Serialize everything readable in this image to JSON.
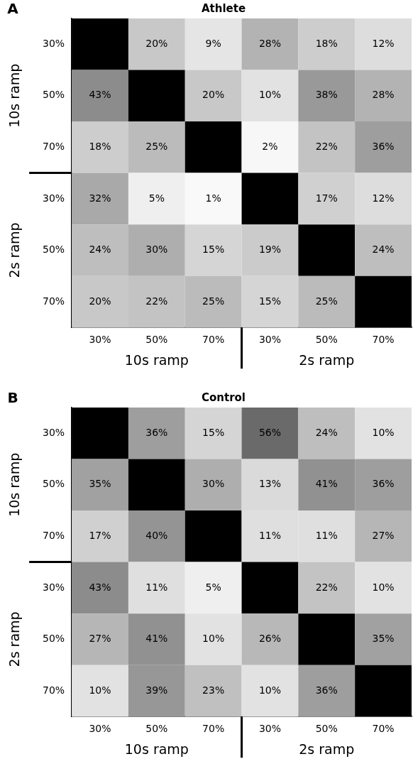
{
  "chart_data": [
    {
      "type": "heatmap",
      "title": "Athlete",
      "categories": [
        "30%",
        "50%",
        "70%",
        "30%",
        "50%",
        "70%"
      ],
      "y_categories": [
        "30%",
        "50%",
        "70%",
        "30%",
        "50%",
        "70%"
      ],
      "cells": [
        [
          null,
          20,
          9,
          28,
          18,
          12
        ],
        [
          43,
          null,
          20,
          10,
          38,
          28
        ],
        [
          18,
          25,
          null,
          2,
          22,
          36
        ],
        [
          32,
          5,
          1,
          null,
          17,
          12
        ],
        [
          24,
          30,
          15,
          19,
          null,
          24
        ],
        [
          20,
          22,
          25,
          15,
          25,
          null
        ]
      ],
      "cell_labels": [
        [
          null,
          "20%",
          "9%",
          "28%",
          "18%",
          "12%"
        ],
        [
          "43%",
          null,
          "20%",
          "10%",
          "38%",
          "28%"
        ],
        [
          "18%",
          "25%",
          null,
          "2%",
          "22%",
          "36%"
        ],
        [
          "32%",
          "5%",
          "1%",
          null,
          "17%",
          "12%"
        ],
        [
          "24%",
          "30%",
          "15%",
          "19%",
          null,
          "24%"
        ],
        [
          "20%",
          "22%",
          "25%",
          "15%",
          "25%",
          null
        ]
      ],
      "annotations": [
        "A",
        "10s ramp",
        "2s ramp",
        "10s ramp",
        "2s ramp"
      ]
    },
    {
      "type": "heatmap",
      "title": "Control",
      "categories": [
        "30%",
        "50%",
        "70%",
        "30%",
        "50%",
        "70%"
      ],
      "y_categories": [
        "30%",
        "50%",
        "70%",
        "30%",
        "50%",
        "70%"
      ],
      "cells": [
        [
          null,
          36,
          15,
          56,
          24,
          10
        ],
        [
          35,
          null,
          30,
          13,
          41,
          36
        ],
        [
          17,
          40,
          null,
          11,
          11,
          27
        ],
        [
          43,
          11,
          5,
          null,
          22,
          10
        ],
        [
          27,
          41,
          10,
          26,
          null,
          35
        ],
        [
          10,
          39,
          23,
          10,
          36,
          null
        ]
      ],
      "cell_labels": [
        [
          null,
          "36%",
          "15%",
          "56%",
          "24%",
          "10%"
        ],
        [
          "35%",
          null,
          "30%",
          "13%",
          "41%",
          "36%"
        ],
        [
          "17%",
          "40%",
          null,
          "11%",
          "11%",
          "27%"
        ],
        [
          "43%",
          "11%",
          "5%",
          null,
          "22%",
          "10%"
        ],
        [
          "27%",
          "41%",
          "10%",
          "26%",
          null,
          "35%"
        ],
        [
          "10%",
          "39%",
          "23%",
          "10%",
          "36%",
          null
        ]
      ],
      "annotations": [
        "B",
        "10s ramp",
        "2s ramp",
        "10s ramp",
        "2s ramp"
      ]
    }
  ]
}
